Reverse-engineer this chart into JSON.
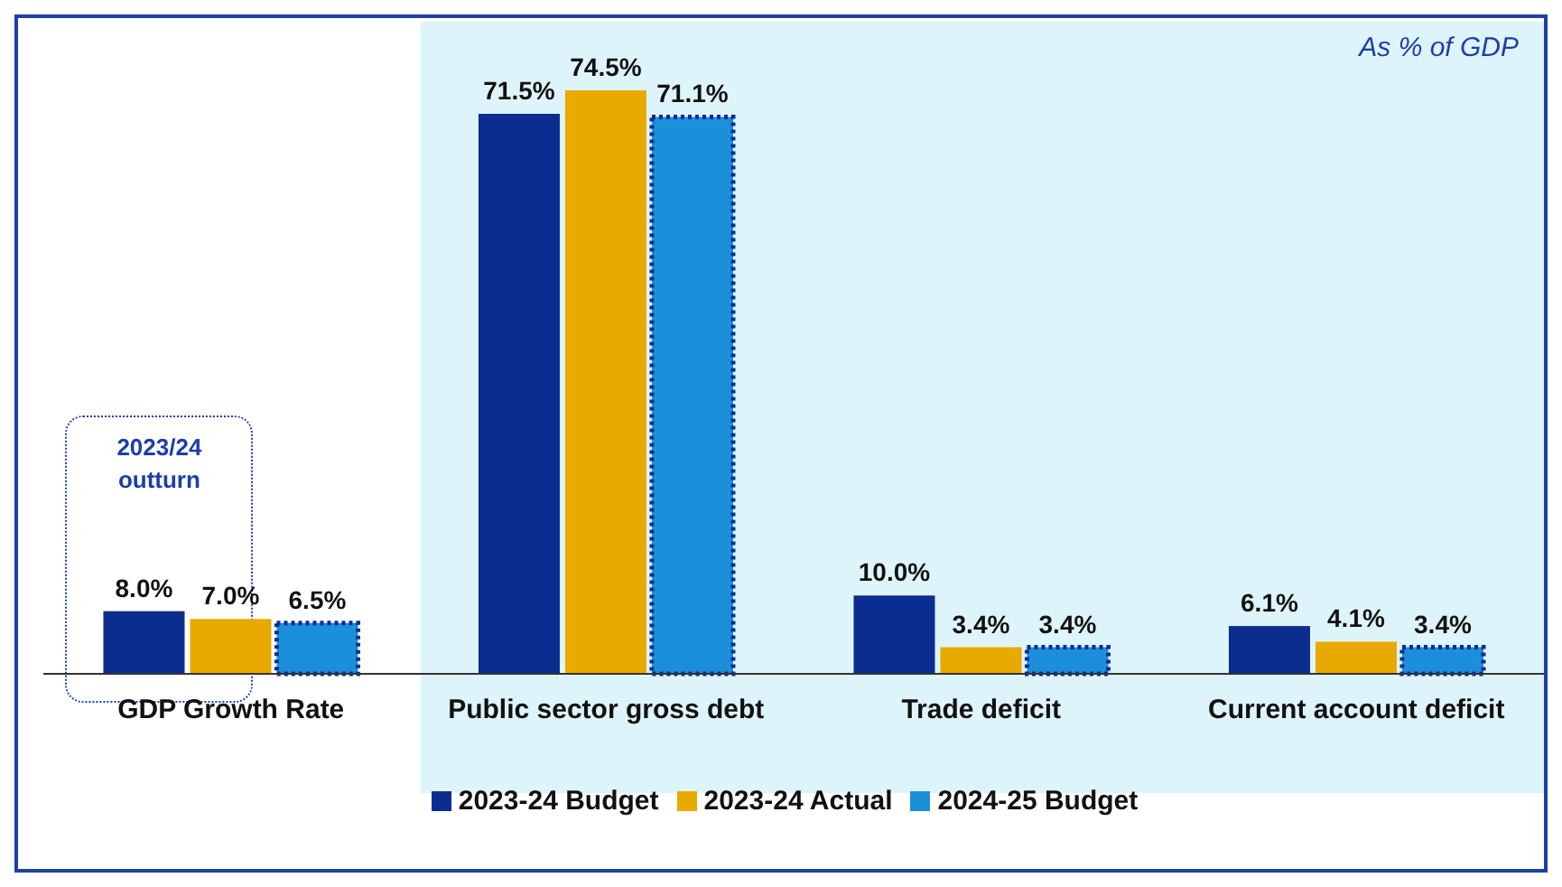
{
  "chart_data": {
    "type": "bar",
    "categories": [
      "GDP Growth Rate",
      "Public sector gross debt",
      "Trade deficit",
      "Current account deficit"
    ],
    "series": [
      {
        "name": "2023-24 Budget",
        "color": "#0b2d8f",
        "values": [
          8.0,
          71.5,
          10.0,
          6.1
        ],
        "value_labels": [
          "8.0%",
          "71.5%",
          "10.0%",
          "6.1%"
        ]
      },
      {
        "name": "2023-24 Actual",
        "color": "#e9aa00",
        "values": [
          7.0,
          74.5,
          3.4,
          4.1
        ],
        "value_labels": [
          "7.0%",
          "74.5%",
          "3.4%",
          "4.1%"
        ]
      },
      {
        "name": "2024-25 Budget",
        "color": "#1c8fdb",
        "line_style": "dotted",
        "values": [
          6.5,
          71.1,
          3.4,
          3.4
        ],
        "value_labels": [
          "6.5%",
          "71.1%",
          "3.4%",
          "3.4%"
        ]
      }
    ],
    "bands": [
      {
        "axis": "x",
        "from": "Public sector gross debt",
        "to": "Current account deficit",
        "color": "#def4fb"
      }
    ],
    "annotations": [
      "As % of GDP",
      "2023/24 outturn"
    ],
    "legend": "bottom"
  }
}
